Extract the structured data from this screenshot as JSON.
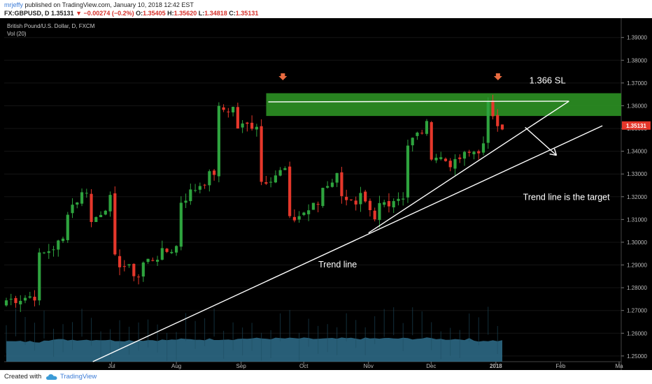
{
  "header": {
    "author": "mrjeffy",
    "published": "published on TradingView.com, January 10, 2018 12:42 EST"
  },
  "quote": {
    "symbol": "FX:GBPUSD, D",
    "last": "1.35131",
    "change": "−0.00274 (−0.2%)",
    "o_label": "O:",
    "o": "1.35405",
    "h_label": "H:",
    "h": "1.35620",
    "l_label": "L:",
    "l": "1.34818",
    "c_label": "C:",
    "c": "1.35131"
  },
  "legend": {
    "title": "British Pound/U.S. Dollar, D, FXCM",
    "volume": "Vol (20)"
  },
  "footer": {
    "made_with": "Created with",
    "brand": "TradingView"
  },
  "colors": {
    "up": "#2ea33e",
    "down": "#e5372b",
    "zone": "#2a8a22",
    "volume": "#2f6e8c",
    "line": "#ffffff",
    "arrow": "#e86a3f"
  },
  "icons": {
    "brand": "tradingview-cloud-icon",
    "arrow_down": "arrow-down-icon",
    "price_direction": "triangle-down-icon"
  },
  "chart_data": {
    "type": "candlestick",
    "title": "British Pound/U.S. Dollar, D, FXCM",
    "ylim": [
      1.2475,
      1.3985
    ],
    "y_ticks": [
      "1.39000",
      "1.38000",
      "1.37000",
      "1.36000",
      "1.35000",
      "1.34000",
      "1.33000",
      "1.32000",
      "1.31000",
      "1.30000",
      "1.29000",
      "1.28000",
      "1.27000",
      "1.26000",
      "1.25000"
    ],
    "x_ticks": [
      "Jul",
      "Aug",
      "Sep",
      "Oct",
      "Nov",
      "Dec",
      "2018",
      "Feb",
      "Ma"
    ],
    "last_price_label": "1.35131",
    "annotations": [
      {
        "text": "1.366 SL"
      },
      {
        "text": "Trend line is the target"
      },
      {
        "text": "Trend line"
      }
    ],
    "sl_zone": [
      1.3555,
      1.3655
    ],
    "anchors": [
      [
        1.2745,
        1.2765
      ],
      [
        1.2936,
        1.3008
      ],
      [
        1.3142,
        1.3234
      ],
      [
        1.3086,
        1.3186
      ],
      [
        1.2923,
        1.2852
      ],
      [
        1.2908,
        1.2981
      ],
      [
        1.3182,
        1.3309
      ],
      [
        1.358,
        1.359
      ],
      [
        1.3505,
        1.3521
      ],
      [
        1.3268,
        1.3318
      ],
      [
        1.3092,
        1.3169
      ],
      [
        1.3242,
        1.3292
      ],
      [
        1.3221,
        1.3148
      ],
      [
        1.3193,
        1.3088
      ],
      [
        1.3165,
        1.3206
      ],
      [
        1.343,
        1.351
      ],
      [
        1.3388,
        1.3341
      ],
      [
        1.3368,
        1.342
      ],
      [
        1.3597,
        1.3534
      ],
      [
        1.3513,
        1.3513
      ]
    ],
    "seg_lengths": [
      7,
      6,
      5,
      5,
      6,
      8,
      8,
      4,
      5,
      6,
      7,
      4,
      4,
      4,
      6,
      5,
      6,
      6,
      3
    ],
    "volume_levels": [
      0.62,
      0.68,
      0.68,
      0.66,
      0.67,
      0.69,
      0.7,
      0.72,
      0.72,
      0.71,
      0.72,
      0.72,
      0.72,
      0.7,
      0.65
    ],
    "trendlines": [
      {
        "from": [
          "2017-06-22",
          1.2475
        ],
        "to": [
          "2018-02-21",
          1.3512
        ]
      },
      {
        "from": [
          "2017-11-01",
          1.3041
        ],
        "to": [
          "2018-02-05",
          1.362
        ]
      },
      {
        "from": [
          "2017-09-14",
          1.3617
        ],
        "to": [
          "2018-02-05",
          1.362
        ]
      }
    ]
  }
}
